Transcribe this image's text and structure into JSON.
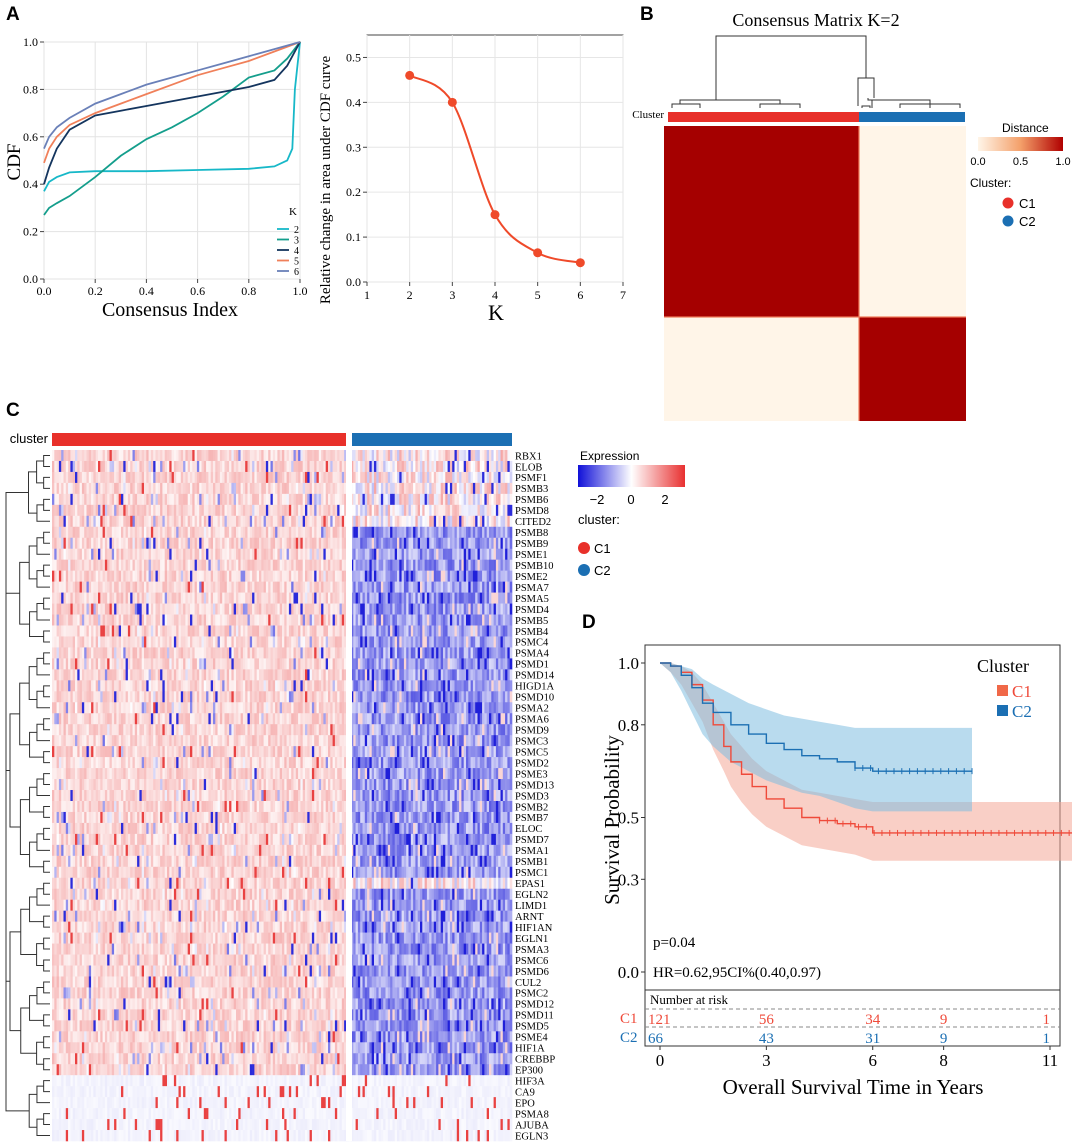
{
  "panels": {
    "a": "A",
    "b": "B",
    "c": "C",
    "d": "D"
  },
  "colors": {
    "c1": "#e8302a",
    "c2": "#1b6fb3",
    "heat_high": "#a50000",
    "heat_low": "#fff5e8"
  },
  "chart_data": [
    {
      "id": "A1",
      "type": "line",
      "xlabel": "Consensus Index",
      "ylabel": "CDF",
      "xlim": [
        0,
        1
      ],
      "ylim": [
        0,
        1
      ],
      "xticks": [
        "0.0",
        "0.2",
        "0.4",
        "0.6",
        "0.8",
        "1.0"
      ],
      "yticks": [
        "0.0",
        "0.2",
        "0.4",
        "0.6",
        "0.8",
        "1.0"
      ],
      "grid": true,
      "legend_title": "K",
      "legend_position": "bottom-right",
      "series": [
        {
          "name": "2",
          "color": "#17b8c8",
          "x": [
            0,
            0.02,
            0.05,
            0.1,
            0.2,
            0.4,
            0.6,
            0.8,
            0.9,
            0.95,
            0.97,
            0.98,
            1.0
          ],
          "y": [
            0.37,
            0.41,
            0.43,
            0.45,
            0.455,
            0.455,
            0.46,
            0.465,
            0.475,
            0.5,
            0.55,
            0.8,
            1.0
          ]
        },
        {
          "name": "3",
          "color": "#149e8c",
          "x": [
            0,
            0.02,
            0.05,
            0.1,
            0.2,
            0.3,
            0.4,
            0.5,
            0.6,
            0.7,
            0.8,
            0.9,
            0.95,
            1.0
          ],
          "y": [
            0.27,
            0.3,
            0.32,
            0.35,
            0.43,
            0.52,
            0.59,
            0.64,
            0.7,
            0.77,
            0.85,
            0.88,
            0.93,
            1.0
          ]
        },
        {
          "name": "4",
          "color": "#14355e",
          "x": [
            0,
            0.02,
            0.05,
            0.1,
            0.2,
            0.3,
            0.4,
            0.5,
            0.6,
            0.7,
            0.8,
            0.9,
            0.95,
            1.0
          ],
          "y": [
            0.4,
            0.47,
            0.55,
            0.63,
            0.69,
            0.71,
            0.73,
            0.75,
            0.77,
            0.79,
            0.81,
            0.84,
            0.9,
            1.0
          ]
        },
        {
          "name": "5",
          "color": "#f0805a",
          "x": [
            0,
            0.02,
            0.05,
            0.1,
            0.2,
            0.3,
            0.4,
            0.5,
            0.6,
            0.7,
            0.8,
            0.9,
            1.0
          ],
          "y": [
            0.49,
            0.55,
            0.6,
            0.65,
            0.7,
            0.74,
            0.78,
            0.82,
            0.86,
            0.89,
            0.92,
            0.96,
            1.0
          ]
        },
        {
          "name": "6",
          "color": "#6a80b8",
          "x": [
            0,
            0.02,
            0.05,
            0.1,
            0.2,
            0.3,
            0.4,
            0.5,
            0.6,
            0.7,
            0.8,
            0.9,
            1.0
          ],
          "y": [
            0.55,
            0.6,
            0.64,
            0.68,
            0.74,
            0.78,
            0.82,
            0.85,
            0.88,
            0.91,
            0.94,
            0.97,
            1.0
          ]
        }
      ]
    },
    {
      "id": "A2",
      "type": "line",
      "xlabel": "K",
      "ylabel": "Relative change in area under CDF curve",
      "xlim": [
        1,
        7
      ],
      "ylim": [
        0,
        0.55
      ],
      "xticks": [
        "1",
        "2",
        "3",
        "4",
        "5",
        "6",
        "7"
      ],
      "yticks": [
        "0.0",
        "0.1",
        "0.2",
        "0.3",
        "0.4",
        "0.5"
      ],
      "grid": true,
      "color": "#ef4a2a",
      "x": [
        2,
        3,
        4,
        5,
        6
      ],
      "y": [
        0.46,
        0.4,
        0.15,
        0.065,
        0.043
      ]
    },
    {
      "id": "B",
      "type": "heatmap",
      "title": "Consensus Matrix K=2",
      "row_label": "Cluster",
      "legend_title": "Distance",
      "legend_ticks": [
        "0.0",
        "0.5",
        "1.0"
      ],
      "cluster_legend_title": "Cluster:",
      "clusters": [
        {
          "name": "C1",
          "fraction": 0.64
        },
        {
          "name": "C2",
          "fraction": 0.36
        }
      ]
    },
    {
      "id": "C",
      "type": "heatmap",
      "row_label": "cluster",
      "legend_title": "Expression",
      "legend_ticks": [
        "−2",
        "0",
        "2"
      ],
      "cluster_legend_title": "cluster:",
      "clusters": [
        {
          "name": "C1",
          "fraction": 0.64
        },
        {
          "name": "C2",
          "fraction": 0.36
        }
      ],
      "genes": [
        "RBX1",
        "ELOB",
        "PSMF1",
        "PSMB3",
        "PSMB6",
        "PSMD8",
        "CITED2",
        "PSMB8",
        "PSMB9",
        "PSME1",
        "PSMB10",
        "PSME2",
        "PSMA7",
        "PSMA5",
        "PSMD4",
        "PSMB5",
        "PSMB4",
        "PSMC4",
        "PSMA4",
        "PSMD1",
        "PSMD14",
        "HIGD1A",
        "PSMD10",
        "PSMA2",
        "PSMA6",
        "PSMD9",
        "PSMC3",
        "PSMC5",
        "PSMD2",
        "PSME3",
        "PSMD13",
        "PSMD3",
        "PSMB2",
        "PSMB7",
        "ELOC",
        "PSMD7",
        "PSMA1",
        "PSMB1",
        "PSMC1",
        "EPAS1",
        "EGLN2",
        "LIMD1",
        "ARNT",
        "HIF1AN",
        "EGLN1",
        "PSMA3",
        "PSMC6",
        "PSMD6",
        "CUL2",
        "PSMC2",
        "PSMD12",
        "PSMD11",
        "PSMD5",
        "PSME4",
        "HIF1A",
        "CREBBP",
        "EP300",
        "HIF3A",
        "CA9",
        "EPO",
        "PSMA8",
        "AJUBA",
        "EGLN3"
      ]
    },
    {
      "id": "D",
      "type": "line",
      "xlabel": "Overall Survival Time in Years",
      "ylabel": "Survival Probability",
      "xlim": [
        0,
        11
      ],
      "ylim": [
        0,
        1
      ],
      "xticks": [
        "0",
        "3",
        "6",
        "8",
        "11"
      ],
      "yticks": [
        "0.0",
        "0.3",
        "0.5",
        "0.8",
        "1.0"
      ],
      "legend_title": "Cluster",
      "legend_position": "top-right",
      "p_value": "p=0.04",
      "hr": "HR=0.62,95CI%(0.40,0.97)",
      "series": [
        {
          "name": "C1",
          "color": "#ef4a3a",
          "x": [
            0,
            0.3,
            0.6,
            0.9,
            1.2,
            1.5,
            1.8,
            2.0,
            2.3,
            2.6,
            3.0,
            3.5,
            4.0,
            4.5,
            5.0,
            5.5,
            6.0,
            7.0,
            8.0,
            9.0,
            11.8
          ],
          "y": [
            1.0,
            0.99,
            0.97,
            0.93,
            0.88,
            0.8,
            0.73,
            0.68,
            0.64,
            0.6,
            0.56,
            0.53,
            0.5,
            0.49,
            0.48,
            0.47,
            0.45,
            0.45,
            0.45,
            0.45,
            0.45
          ],
          "upper": [
            1.0,
            1.0,
            0.99,
            0.97,
            0.93,
            0.87,
            0.81,
            0.77,
            0.73,
            0.69,
            0.65,
            0.62,
            0.59,
            0.58,
            0.57,
            0.56,
            0.55,
            0.55,
            0.55,
            0.55,
            0.55
          ],
          "lower": [
            1.0,
            0.97,
            0.93,
            0.87,
            0.81,
            0.72,
            0.65,
            0.6,
            0.55,
            0.51,
            0.47,
            0.44,
            0.41,
            0.4,
            0.39,
            0.38,
            0.36,
            0.36,
            0.36,
            0.36,
            0.36
          ]
        },
        {
          "name": "C2",
          "color": "#1b6fb3",
          "x": [
            0,
            0.3,
            0.6,
            0.9,
            1.2,
            1.5,
            2.0,
            2.5,
            3.0,
            3.5,
            4.0,
            4.5,
            5.0,
            5.5,
            6.0,
            7.0,
            8.0,
            8.8
          ],
          "y": [
            1.0,
            0.99,
            0.96,
            0.92,
            0.87,
            0.84,
            0.8,
            0.77,
            0.74,
            0.72,
            0.7,
            0.69,
            0.68,
            0.66,
            0.65,
            0.65,
            0.65,
            0.65
          ],
          "upper": [
            1.0,
            1.0,
            0.99,
            0.98,
            0.95,
            0.93,
            0.9,
            0.87,
            0.85,
            0.83,
            0.82,
            0.81,
            0.8,
            0.79,
            0.79,
            0.79,
            0.79,
            0.79
          ],
          "lower": [
            1.0,
            0.97,
            0.91,
            0.84,
            0.77,
            0.73,
            0.68,
            0.65,
            0.62,
            0.6,
            0.58,
            0.57,
            0.55,
            0.53,
            0.52,
            0.52,
            0.52,
            0.52
          ]
        }
      ],
      "risk_table": {
        "title": "Number at risk",
        "rows": [
          {
            "name": "C1",
            "values": [
              "121",
              "56",
              "34",
              "9",
              "1"
            ]
          },
          {
            "name": "C2",
            "values": [
              "66",
              "43",
              "31",
              "9",
              "1"
            ]
          }
        ]
      }
    }
  ]
}
